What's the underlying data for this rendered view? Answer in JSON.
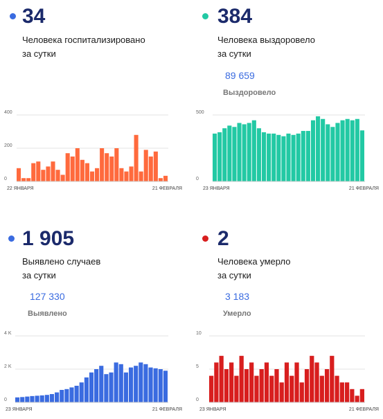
{
  "panels": [
    {
      "value": "34",
      "description_line1": "Человека госпитализировано",
      "description_line2": "за сутки",
      "total": "",
      "total_label": "",
      "dot_color": "#3a6be0"
    },
    {
      "value": "384",
      "description_line1": "Человека выздоровело",
      "description_line2": "за сутки",
      "total": "89 659",
      "total_label": "Выздоровело",
      "dot_color": "#22c9a4"
    },
    {
      "value": "1 905",
      "description_line1": "Выявлено случаев",
      "description_line2": "за сутки",
      "total": "127 330",
      "total_label": "Выявлено",
      "dot_color": "#3a6be0"
    },
    {
      "value": "2",
      "description_line1": "Человека умерло",
      "description_line2": "за сутки",
      "total": "3 183",
      "total_label": "Умерло",
      "dot_color": "#d81e1e"
    }
  ],
  "chart_data": [
    {
      "type": "bar",
      "color": "#ff6a3d",
      "x_start": "22 ЯНВАРЯ",
      "x_end": "21 ФЕВРАЛЯ",
      "ylim": [
        0,
        400
      ],
      "yticks": [
        {
          "value": 400,
          "label": "400"
        },
        {
          "value": 200,
          "label": "200"
        },
        {
          "value": 0,
          "label": "0"
        }
      ],
      "values": [
        80,
        20,
        20,
        110,
        120,
        70,
        90,
        120,
        70,
        40,
        170,
        150,
        200,
        130,
        110,
        60,
        80,
        200,
        170,
        150,
        200,
        80,
        60,
        90,
        280,
        60,
        190,
        150,
        180,
        20,
        34
      ]
    },
    {
      "type": "bar",
      "color": "#22c9a4",
      "x_start": "23 ЯНВАРЯ",
      "x_end": "21 ФЕВРАЛЯ",
      "ylim": [
        0,
        500
      ],
      "yticks": [
        {
          "value": 500,
          "label": "500"
        },
        {
          "value": 0,
          "label": "0"
        }
      ],
      "values": [
        360,
        370,
        400,
        420,
        410,
        440,
        430,
        440,
        460,
        400,
        370,
        360,
        360,
        350,
        340,
        360,
        350,
        360,
        380,
        380,
        460,
        490,
        470,
        430,
        410,
        440,
        460,
        470,
        460,
        470,
        384
      ]
    },
    {
      "type": "bar",
      "color": "#3a6be0",
      "x_start": "23 ЯНВАРЯ",
      "x_end": "21 ФЕВРАЛЯ",
      "ylim": [
        0,
        4000
      ],
      "yticks": [
        {
          "value": 4000,
          "label": "4 K"
        },
        {
          "value": 2000,
          "label": "2 K"
        },
        {
          "value": 0,
          "label": "0"
        }
      ],
      "values": [
        300,
        320,
        350,
        380,
        400,
        420,
        450,
        500,
        600,
        750,
        800,
        900,
        1000,
        1200,
        1500,
        1800,
        2000,
        2200,
        1700,
        1800,
        2400,
        2300,
        1800,
        2100,
        2200,
        2400,
        2300,
        2100,
        2050,
        2000,
        1905
      ]
    },
    {
      "type": "bar",
      "color": "#d81e1e",
      "x_start": "23 ЯНВАРЯ",
      "x_end": "21 ФЕВРАЛЯ",
      "ylim": [
        0,
        10
      ],
      "yticks": [
        {
          "value": 10,
          "label": "10"
        },
        {
          "value": 5,
          "label": "5"
        },
        {
          "value": 0,
          "label": "0"
        }
      ],
      "values": [
        4,
        6,
        7,
        5,
        6,
        4,
        7,
        5,
        6,
        4,
        5,
        6,
        4,
        5,
        3,
        6,
        4,
        6,
        3,
        5,
        7,
        6,
        4,
        5,
        7,
        4,
        3,
        3,
        2,
        1,
        2
      ]
    }
  ]
}
